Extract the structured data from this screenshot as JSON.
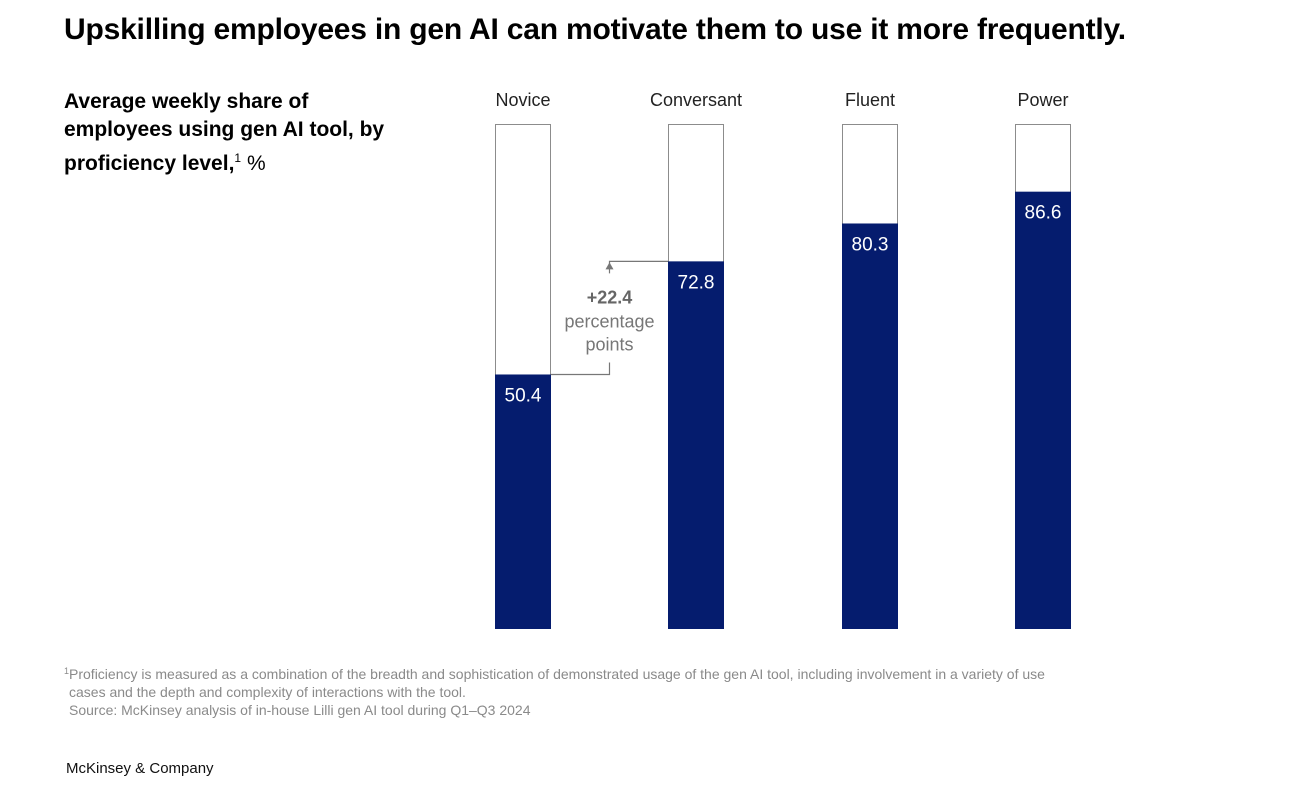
{
  "title": "Upskilling employees in gen AI can motivate them to use it more frequently.",
  "subtitle": {
    "text": "Average weekly share of employees using gen AI tool, by proficiency level,",
    "footnote_mark": "1",
    "unit": "%"
  },
  "chart_data": {
    "type": "bar",
    "stacked_to": 100,
    "categories": [
      "Novice",
      "Conversant",
      "Fluent",
      "Power"
    ],
    "values": [
      50.4,
      72.8,
      80.3,
      86.6
    ],
    "value_labels": [
      "50.4",
      "72.8",
      "80.3",
      "86.6"
    ],
    "ylim": [
      0,
      100
    ],
    "annotation": {
      "from_category": "Novice",
      "to_category": "Conversant",
      "value": "+22.4",
      "line1": "percentage",
      "line2": "points"
    }
  },
  "colors": {
    "bar_fill": "#051c6e",
    "bar_outline": "#8c8c8c",
    "annotation": "#777777"
  },
  "footnotes": {
    "mark": "1",
    "note_line1": "Proficiency is measured as a combination of the breadth and sophistication of demonstrated usage of the gen AI tool, including involvement in a variety of use",
    "note_line2": "cases and the depth and complexity of interactions with the tool.",
    "source": "Source: McKinsey analysis of in-house Lilli gen AI tool during Q1–Q3 2024"
  },
  "brand": "McKinsey & Company"
}
